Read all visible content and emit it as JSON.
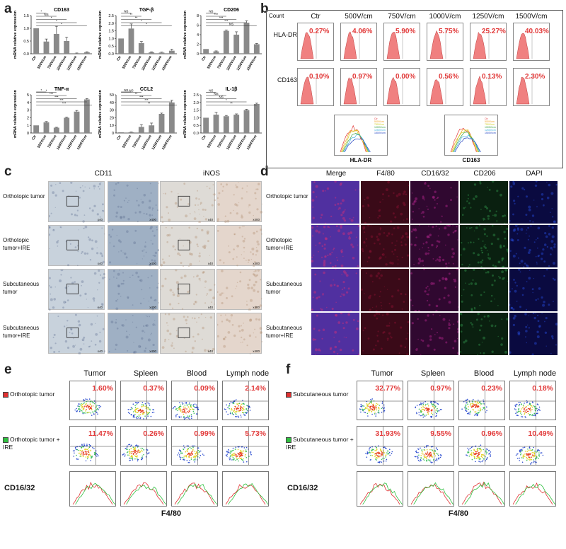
{
  "panel_letters": {
    "a": "a",
    "b": "b",
    "c": "c",
    "d": "d",
    "e": "e",
    "f": "f"
  },
  "panel_a": {
    "ylabel": "mRNA relative expression",
    "categories": [
      "Ctr",
      "500V/cm",
      "750V/cm",
      "1000V/cm",
      "1250V/cm",
      "1500V/cm"
    ],
    "colors": {
      "bar": "#8a8a8a",
      "axis": "#222"
    },
    "charts": [
      {
        "title": "CD163",
        "ymax": 1.5,
        "ticks": [
          "0.0",
          "0.5",
          "1.0",
          "1.5"
        ],
        "values": [
          1.0,
          0.48,
          0.78,
          0.5,
          0.02,
          0.06
        ],
        "errors": [
          0.0,
          0.1,
          0.3,
          0.15,
          0.01,
          0.02
        ],
        "sig": [
          "*",
          "NS",
          "*",
          "*",
          "*"
        ]
      },
      {
        "title": "TGF-β",
        "ymax": 2.5,
        "ticks": [
          "0.0",
          "0.5",
          "1.0",
          "1.5",
          "2.0",
          "2.5"
        ],
        "values": [
          1.0,
          1.65,
          0.7,
          0.1,
          0.08,
          0.2
        ],
        "errors": [
          0.0,
          0.3,
          0.1,
          0.03,
          0.03,
          0.1
        ],
        "sig": [
          "NS",
          "**",
          "**",
          "*",
          "*"
        ]
      },
      {
        "title": "CD206",
        "ymax": 8,
        "ticks": [
          "0",
          "2",
          "4",
          "6",
          "8"
        ],
        "values": [
          1.0,
          0.5,
          4.8,
          4.0,
          6.5,
          2.0
        ],
        "errors": [
          0.0,
          0.1,
          0.2,
          0.6,
          0.4,
          0.15
        ],
        "sig": [
          "NS",
          "***",
          "***",
          "***",
          "NS"
        ]
      },
      {
        "title": "TNF-α",
        "ymax": 5,
        "ticks": [
          "0",
          "1",
          "2",
          "3",
          "4",
          "5"
        ],
        "values": [
          1.0,
          1.4,
          0.7,
          2.0,
          2.8,
          4.4
        ],
        "errors": [
          0.0,
          0.1,
          0.05,
          0.1,
          0.15,
          0.1
        ],
        "sig": [
          "*",
          "*",
          "***",
          "***",
          "***",
          "***"
        ]
      },
      {
        "title": "CCL2",
        "ymax": 50,
        "ticks": [
          "0",
          "10",
          "20",
          "30",
          "40",
          "50"
        ],
        "values": [
          1.0,
          1.0,
          8.0,
          10.0,
          25.0,
          40.0
        ],
        "errors": [
          0.0,
          0.3,
          3.0,
          3.0,
          1.0,
          3.0
        ],
        "sig": [
          "NS",
          "NS",
          "**",
          "***",
          "***",
          "**"
        ]
      },
      {
        "title": "IL-1β",
        "ymax": 2.5,
        "ticks": [
          "0.0",
          "0.5",
          "1.0",
          "1.5",
          "2.0",
          "2.5"
        ],
        "values": [
          1.0,
          1.2,
          1.1,
          1.2,
          1.5,
          1.9
        ],
        "errors": [
          0.0,
          0.15,
          0.05,
          0.05,
          0.05,
          0.05
        ],
        "sig": [
          "NS",
          "NS",
          "NS",
          "*",
          "**"
        ]
      }
    ]
  },
  "panel_b": {
    "count_label": "Count",
    "columns": [
      "Ctr",
      "500V/cm",
      "750V/cm",
      "1000V/cm",
      "1250V/cm",
      "1500V/cm"
    ],
    "rows": [
      {
        "label": "HLA-DR",
        "percents": [
          "0.27%",
          "4.06%",
          "5.90%",
          "5.75%",
          "25.27%",
          "40.03%"
        ]
      },
      {
        "label": "CD163",
        "percents": [
          "0.10%",
          "0.97%",
          "0.00%",
          "0.56%",
          "0.13%",
          "2.30%"
        ]
      }
    ],
    "overlay_labels": [
      "HLA-DR",
      "CD163"
    ],
    "legend_items": [
      "Ctr",
      "500V/cm",
      "750V/cm",
      "1000V/cm",
      "1250V/cm",
      "1500V/cm"
    ],
    "legend_colors": [
      "#e23a3a",
      "#f0a020",
      "#d0d020",
      "#3aa040",
      "#3ab0e0",
      "#2040c0"
    ],
    "histogram_color": "#f08080"
  },
  "panel_c": {
    "columns": [
      "CD11",
      "iNOS"
    ],
    "rows": [
      "Orthotopic tumor",
      "Orthotopic tumor+IRE",
      "Subcutaneous tumor",
      "Subcutaneous tumor+IRE"
    ],
    "mag_low": "x40",
    "mag_high": "x400"
  },
  "panel_d": {
    "columns": [
      "Merge",
      "F4/80",
      "CD16/32",
      "CD206",
      "DAPI"
    ],
    "rows": [
      "Orthotopic tumor",
      "Orthotopic tumor+IRE",
      "Subcutaneous tumor",
      "Subcutaneous tumor+IRE"
    ]
  },
  "panel_e": {
    "columns": [
      "Tumor",
      "Spleen",
      "Blood",
      "Lymph node"
    ],
    "rows": [
      {
        "label": "Orthotopic tumor",
        "color": "#e03030",
        "percents": [
          "1.60%",
          "0.37%",
          "0.09%",
          "2.14%"
        ]
      },
      {
        "label": "Orthotopic tumor + IRE",
        "color": "#30c040",
        "percents": [
          "11.47%",
          "0.26%",
          "0.99%",
          "5.73%"
        ]
      }
    ],
    "ylabel": "CD16/32",
    "xlabel": "F4/80"
  },
  "panel_f": {
    "columns": [
      "Tumor",
      "Spleen",
      "Blood",
      "Lymph node"
    ],
    "rows": [
      {
        "label": "Subcutaneous tumor",
        "color": "#e03030",
        "percents": [
          "32.77%",
          "0.97%",
          "0.23%",
          "0.18%"
        ]
      },
      {
        "label": "Subcutaneous tumor + IRE",
        "color": "#30c040",
        "percents": [
          "31.93%",
          "9.55%",
          "0.96%",
          "10.49%"
        ]
      }
    ],
    "ylabel": "CD16/32",
    "xlabel": "F4/80"
  },
  "chart_data": [
    {
      "type": "bar",
      "title": "CD163",
      "categories": [
        "Ctr",
        "500V/cm",
        "750V/cm",
        "1000V/cm",
        "1250V/cm",
        "1500V/cm"
      ],
      "values": [
        1.0,
        0.48,
        0.78,
        0.5,
        0.02,
        0.06
      ],
      "ylabel": "mRNA relative expression",
      "ylim": [
        0,
        1.5
      ]
    },
    {
      "type": "bar",
      "title": "TGF-β",
      "categories": [
        "Ctr",
        "500V/cm",
        "750V/cm",
        "1000V/cm",
        "1250V/cm",
        "1500V/cm"
      ],
      "values": [
        1.0,
        1.65,
        0.7,
        0.1,
        0.08,
        0.2
      ],
      "ylabel": "mRNA relative expression",
      "ylim": [
        0,
        2.5
      ]
    },
    {
      "type": "bar",
      "title": "CD206",
      "categories": [
        "Ctr",
        "500V/cm",
        "750V/cm",
        "1000V/cm",
        "1250V/cm",
        "1500V/cm"
      ],
      "values": [
        1.0,
        0.5,
        4.8,
        4.0,
        6.5,
        2.0
      ],
      "ylabel": "mRNA relative expression",
      "ylim": [
        0,
        8
      ]
    },
    {
      "type": "bar",
      "title": "TNF-α",
      "categories": [
        "Ctr",
        "500V/cm",
        "750V/cm",
        "1000V/cm",
        "1250V/cm",
        "1500V/cm"
      ],
      "values": [
        1.0,
        1.4,
        0.7,
        2.0,
        2.8,
        4.4
      ],
      "ylabel": "mRNA relative expression",
      "ylim": [
        0,
        5
      ]
    },
    {
      "type": "bar",
      "title": "CCL2",
      "categories": [
        "Ctr",
        "500V/cm",
        "750V/cm",
        "1000V/cm",
        "1250V/cm",
        "1500V/cm"
      ],
      "values": [
        1.0,
        1.0,
        8.0,
        10.0,
        25.0,
        40.0
      ],
      "ylabel": "mRNA relative expression",
      "ylim": [
        0,
        50
      ]
    },
    {
      "type": "bar",
      "title": "IL-1β",
      "categories": [
        "Ctr",
        "500V/cm",
        "750V/cm",
        "1000V/cm",
        "1250V/cm",
        "1500V/cm"
      ],
      "values": [
        1.0,
        1.2,
        1.1,
        1.2,
        1.5,
        1.9
      ],
      "ylabel": "mRNA relative expression",
      "ylim": [
        0,
        2.5
      ]
    }
  ]
}
